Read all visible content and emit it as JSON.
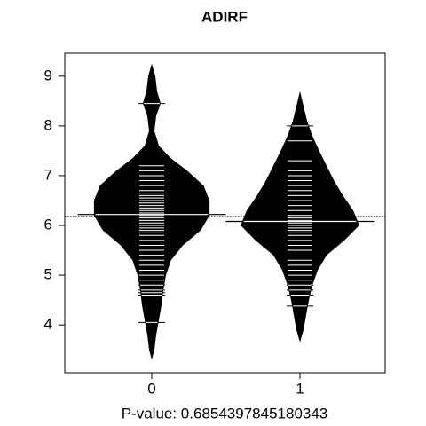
{
  "chart_data": {
    "type": "beanplot",
    "title": "ADIRF",
    "xlabel": "P-value: 0.6854397845180343",
    "categories": [
      "0",
      "1"
    ],
    "ylim": [
      3.04,
      9.46
    ],
    "yticks": [
      4,
      5,
      6,
      7,
      8,
      9
    ],
    "color": "#000000",
    "line_color": "#ffffff",
    "overall_mean": 6.18,
    "beans": [
      {
        "mean": 6.22,
        "density_y": [
          9.25,
          9.0,
          8.7,
          8.45,
          8.2,
          7.9,
          7.6,
          7.35,
          7.1,
          6.8,
          6.5,
          6.2,
          5.9,
          5.6,
          5.3,
          5.0,
          4.7,
          4.4,
          4.1,
          3.8,
          3.5,
          3.3
        ],
        "density_width": [
          0,
          0.024,
          0.036,
          0.06,
          0.03,
          0.018,
          0.048,
          0.13,
          0.24,
          0.35,
          0.39,
          0.39,
          0.33,
          0.21,
          0.13,
          0.096,
          0.078,
          0.066,
          0.048,
          0.03,
          0.018,
          0
        ],
        "values": [
          4.05,
          4.6,
          4.65,
          4.7,
          4.8,
          4.9,
          5.0,
          5.1,
          5.2,
          5.3,
          5.4,
          5.5,
          5.6,
          5.7,
          5.8,
          5.85,
          5.9,
          5.95,
          6.0,
          6.05,
          6.1,
          6.15,
          6.2,
          6.25,
          6.3,
          6.35,
          6.4,
          6.45,
          6.5,
          6.55,
          6.6,
          6.65,
          6.7,
          6.8,
          6.9,
          7.0,
          7.1,
          7.2,
          8.45
        ]
      },
      {
        "mean": 6.08,
        "density_y": [
          8.7,
          8.4,
          8.1,
          7.8,
          7.5,
          7.2,
          6.9,
          6.6,
          6.3,
          6.0,
          5.7,
          5.4,
          5.1,
          4.8,
          4.5,
          4.2,
          3.9,
          3.65
        ],
        "density_width": [
          0,
          0.024,
          0.048,
          0.084,
          0.13,
          0.18,
          0.23,
          0.29,
          0.36,
          0.4,
          0.3,
          0.18,
          0.12,
          0.084,
          0.06,
          0.042,
          0.024,
          0
        ],
        "values": [
          4.38,
          4.6,
          4.7,
          4.8,
          4.9,
          5.0,
          5.1,
          5.2,
          5.3,
          5.5,
          5.6,
          5.7,
          5.8,
          5.85,
          5.9,
          5.95,
          6.0,
          6.05,
          6.1,
          6.15,
          6.2,
          6.3,
          6.4,
          6.5,
          6.6,
          6.7,
          6.8,
          6.9,
          7.0,
          7.1,
          7.3,
          7.7,
          8.0
        ]
      }
    ]
  }
}
